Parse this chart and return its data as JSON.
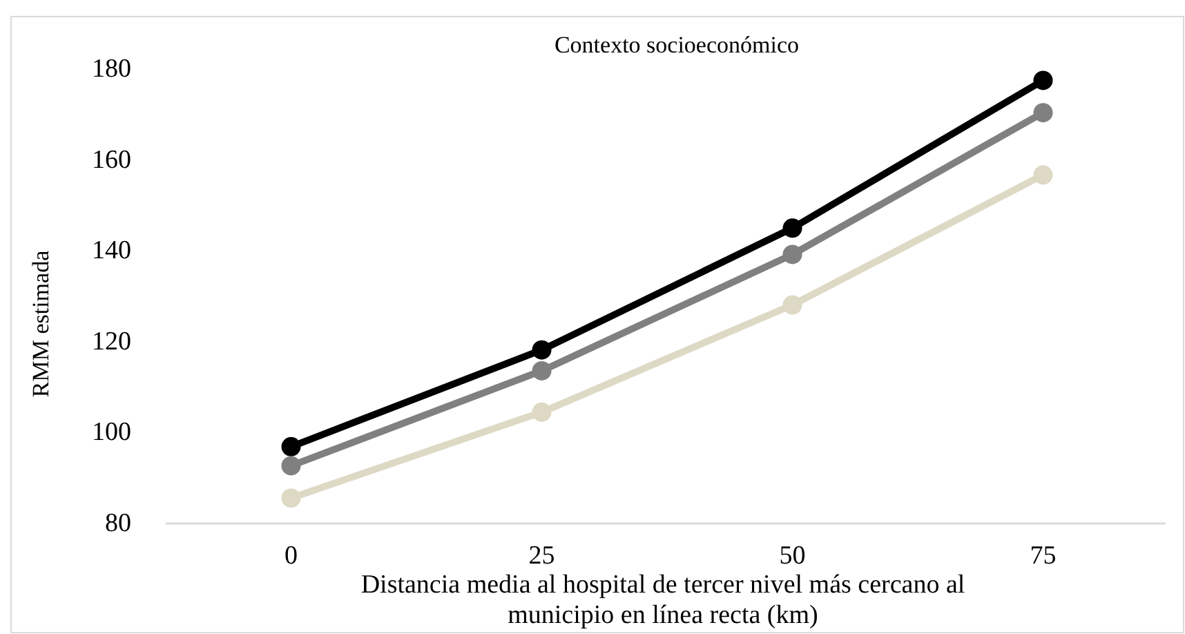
{
  "chart_data": {
    "type": "line",
    "title": "Contexto socioeconómico",
    "xlabel": "Distancia media al hospital de tercer nivel más cercano al municipio en línea recta (km)",
    "ylabel": "RMM estimada",
    "categories": [
      "0",
      "25",
      "50",
      "75"
    ],
    "series": [
      {
        "color": "#000000",
        "values": [
          96.9,
          118.2,
          145.0,
          177.5
        ]
      },
      {
        "color": "#808080",
        "values": [
          92.7,
          113.6,
          139.2,
          170.4
        ]
      },
      {
        "color": "#ddd9c4",
        "values": [
          85.6,
          104.5,
          128.1,
          156.7
        ]
      }
    ],
    "ylim": [
      80,
      180
    ],
    "yticks": [
      80,
      100,
      120,
      140,
      160,
      180
    ],
    "marker": "circle",
    "line_style": "solid",
    "grid": false
  }
}
